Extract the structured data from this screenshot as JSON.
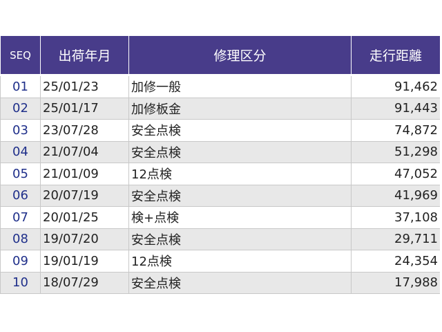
{
  "table": {
    "headers": [
      "SEQ",
      "出荷年月",
      "修理区分",
      "走行距離"
    ],
    "rows": [
      {
        "seq": "01",
        "date": "25/01/23",
        "type": "加修一般",
        "distance": "91,462"
      },
      {
        "seq": "02",
        "date": "25/01/17",
        "type": "加修板金",
        "distance": "91,443"
      },
      {
        "seq": "03",
        "date": "23/07/28",
        "type": "安全点検",
        "distance": "74,872"
      },
      {
        "seq": "04",
        "date": "21/07/04",
        "type": "安全点検",
        "distance": "51,298"
      },
      {
        "seq": "05",
        "date": "21/01/09",
        "type": "12点検",
        "distance": "47,052"
      },
      {
        "seq": "06",
        "date": "20/07/19",
        "type": "安全点検",
        "distance": "41,969"
      },
      {
        "seq": "07",
        "date": "20/01/25",
        "type": "検+点検",
        "distance": "37,108"
      },
      {
        "seq": "08",
        "date": "19/07/20",
        "type": "安全点検",
        "distance": "29,711"
      },
      {
        "seq": "09",
        "date": "19/01/19",
        "type": "12点検",
        "distance": "24,354"
      },
      {
        "seq": "10",
        "date": "18/07/29",
        "type": "安全点検",
        "distance": "17,988"
      }
    ]
  },
  "colors": {
    "header_bg": "#483c8a",
    "row_alt": "#e8e8e8",
    "seq_text": "#1f2f8a"
  }
}
